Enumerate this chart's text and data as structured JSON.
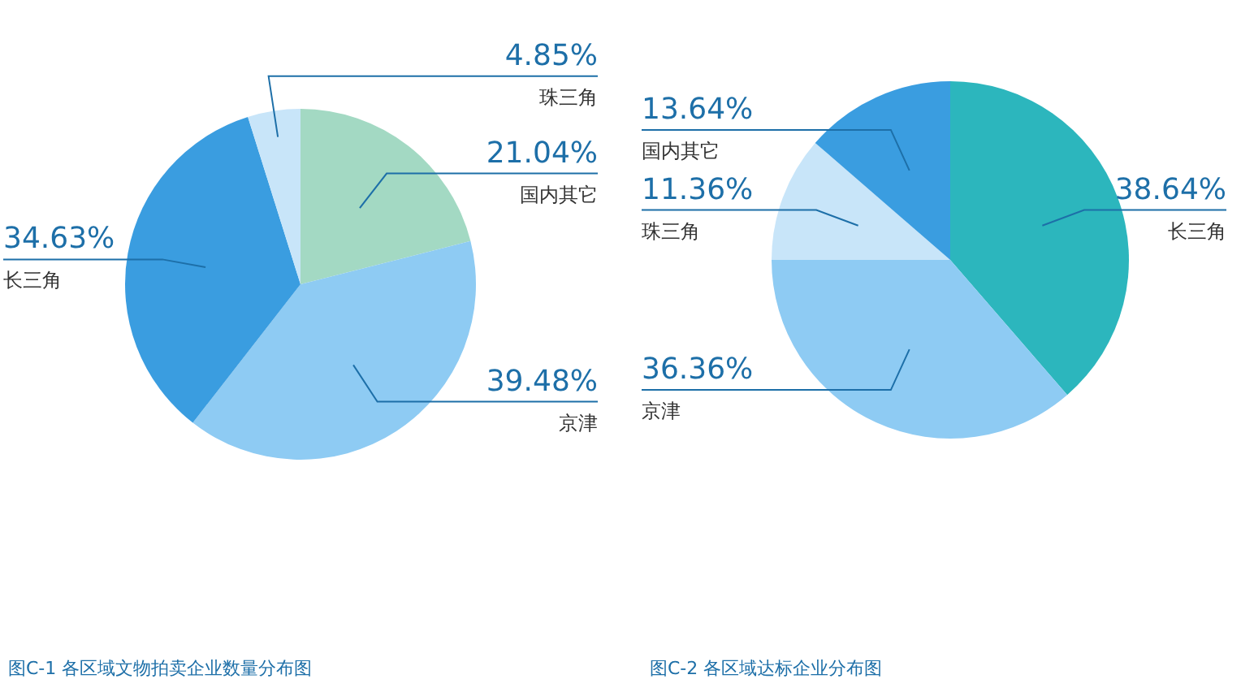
{
  "chart_data": [
    {
      "type": "pie",
      "title": "图C-1 各区域文物拍卖企业数量分布图",
      "categories": [
        "国内其它",
        "京津",
        "长三角",
        "珠三角"
      ],
      "values": [
        21.04,
        39.48,
        34.63,
        4.85
      ],
      "colors": [
        "#a3d9c3",
        "#8ecbf3",
        "#3a9de0",
        "#c8e5f9"
      ],
      "value_labels": [
        "21.04%",
        "39.48%",
        "34.63%",
        "4.85%"
      ]
    },
    {
      "type": "pie",
      "title": "图C-2 各区域达标企业分布图",
      "categories": [
        "长三角",
        "京津",
        "珠三角",
        "国内其它"
      ],
      "values": [
        38.64,
        36.36,
        11.36,
        13.64
      ],
      "colors": [
        "#2cb6bd",
        "#8ecbf3",
        "#c8e5f9",
        "#3a9de0"
      ],
      "value_labels": [
        "38.64%",
        "36.36%",
        "11.36%",
        "13.64%"
      ]
    }
  ]
}
